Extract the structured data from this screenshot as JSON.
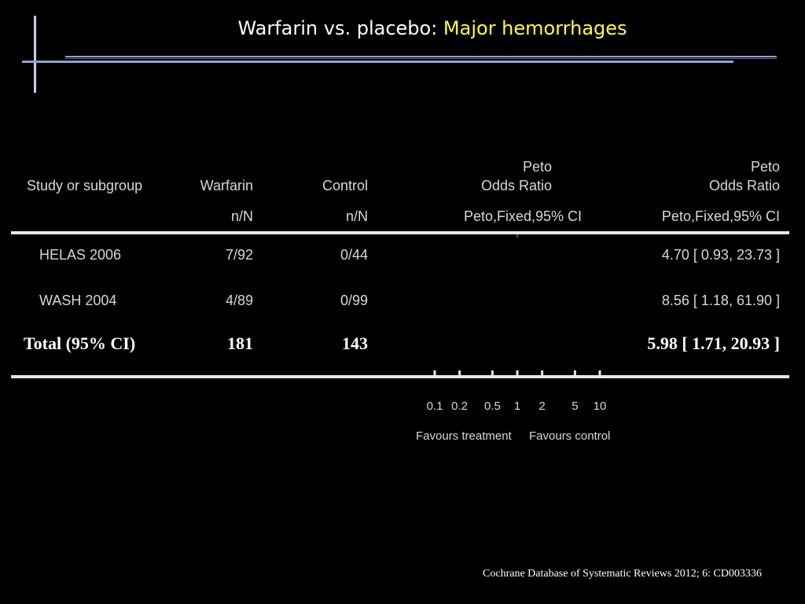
{
  "title": {
    "main": "Warfarin vs. placebo: ",
    "highlight": "Major hemorrhages"
  },
  "columns": {
    "study": "Study or subgroup",
    "warfarin": "Warfarin",
    "warfarin_sub": "n/N",
    "control": "Control",
    "control_sub": "n/N",
    "or_plot_top": "Peto",
    "or_plot_mid": "Odds Ratio",
    "or_plot_sub": "Peto,Fixed,95% CI",
    "or_text_top": "Peto",
    "or_text_mid": "Odds Ratio",
    "or_text_sub": "Peto,Fixed,95% CI"
  },
  "rows": [
    {
      "study": "HELAS 2006",
      "warfarin": "7/92",
      "control": "0/44",
      "or": "4.70 [ 0.93, 23.73 ]"
    },
    {
      "study": "WASH 2004",
      "warfarin": "4/89",
      "control": "0/99",
      "or": "8.56 [ 1.18, 61.90 ]"
    }
  ],
  "total": {
    "label": "Total (95% CI)",
    "warfarin": "181",
    "control": "143",
    "or": "5.98 [ 1.71, 20.93 ]"
  },
  "axis": {
    "favours_left": "Favours treatment",
    "favours_right": "Favours control"
  },
  "citation": "Cochrane Database of Systematic Reviews 2012; 6: CD003336",
  "colors": {
    "background": "#000000",
    "title_highlight": "#ffff33",
    "text": "#d8d8d8"
  },
  "chart_data": {
    "type": "forest",
    "measure": "Peto Odds Ratio",
    "scale": "log",
    "xlim": [
      0.1,
      10
    ],
    "ticks": [
      0.1,
      0.2,
      0.5,
      1,
      2,
      5,
      10
    ],
    "tick_labels": [
      "0.1",
      "0.2",
      "0.5",
      "1",
      "2",
      "5",
      "10"
    ],
    "studies": [
      {
        "name": "HELAS 2006",
        "events_treatment": 7,
        "total_treatment": 92,
        "events_control": 0,
        "total_control": 44,
        "or": 4.7,
        "ci_low": 0.93,
        "ci_high": 23.73
      },
      {
        "name": "WASH 2004",
        "events_treatment": 4,
        "total_treatment": 89,
        "events_control": 0,
        "total_control": 99,
        "or": 8.56,
        "ci_low": 1.18,
        "ci_high": 61.9
      }
    ],
    "pooled": {
      "total_treatment": 181,
      "total_control": 143,
      "or": 5.98,
      "ci_low": 1.71,
      "ci_high": 20.93
    }
  }
}
